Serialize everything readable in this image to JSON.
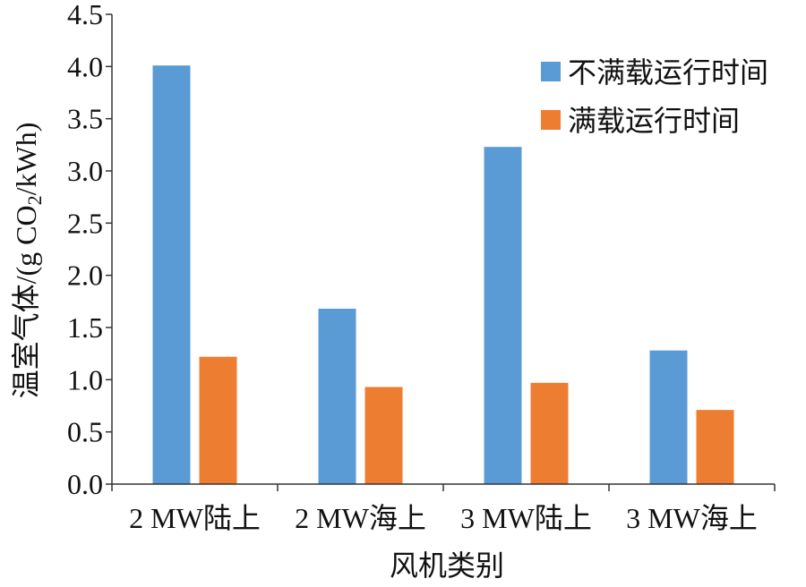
{
  "chart_data": {
    "type": "bar",
    "categories": [
      "2 MW陆上",
      "2 MW海上",
      "3 MW陆上",
      "3 MW海上"
    ],
    "series": [
      {
        "name": "不满载运行时间",
        "color": "#5b9bd5",
        "values": [
          4.01,
          1.68,
          3.23,
          1.28
        ]
      },
      {
        "name": "满载运行时间",
        "color": "#ed7d31",
        "values": [
          1.22,
          0.93,
          0.97,
          0.71
        ]
      }
    ],
    "ylim": [
      0,
      4.5
    ],
    "yticks": [
      "0.0",
      "0.5",
      "1.0",
      "1.5",
      "2.0",
      "2.5",
      "3.0",
      "3.5",
      "4.0",
      "4.5"
    ],
    "xlabel": "风机类别",
    "ylabel": "温室气体/(g CO2/kWh)",
    "ylabel_parts": {
      "prefix": "温室气体/(g CO",
      "sub": "2",
      "suffix": "/kWh)"
    },
    "legend_position": "top-right",
    "grid": false
  }
}
